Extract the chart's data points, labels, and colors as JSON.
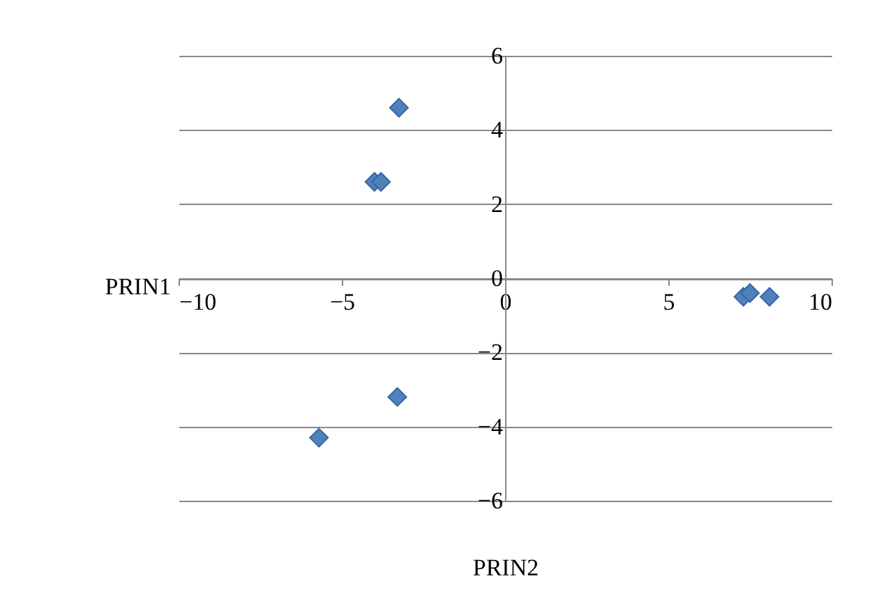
{
  "chart_data": {
    "type": "scatter",
    "xlabel": "PRIN2",
    "ylabel": "PRIN1",
    "x": [
      -3.25,
      -4.0,
      -3.8,
      -3.3,
      -5.7,
      7.3,
      7.5,
      8.1
    ],
    "series": [
      {
        "color": "#4f81bd",
        "values": [
          4.6,
          2.6,
          2.6,
          -3.2,
          -4.3,
          -0.5,
          -0.4,
          -0.5
        ]
      }
    ],
    "xlim": [
      -10,
      10
    ],
    "ylim": [
      -6,
      6
    ],
    "xticks": [
      -10,
      -5,
      0,
      5,
      10
    ],
    "yticks": [
      -6,
      -4,
      -2,
      0,
      2,
      4,
      6
    ],
    "grid": "y",
    "marker": "diamond"
  }
}
